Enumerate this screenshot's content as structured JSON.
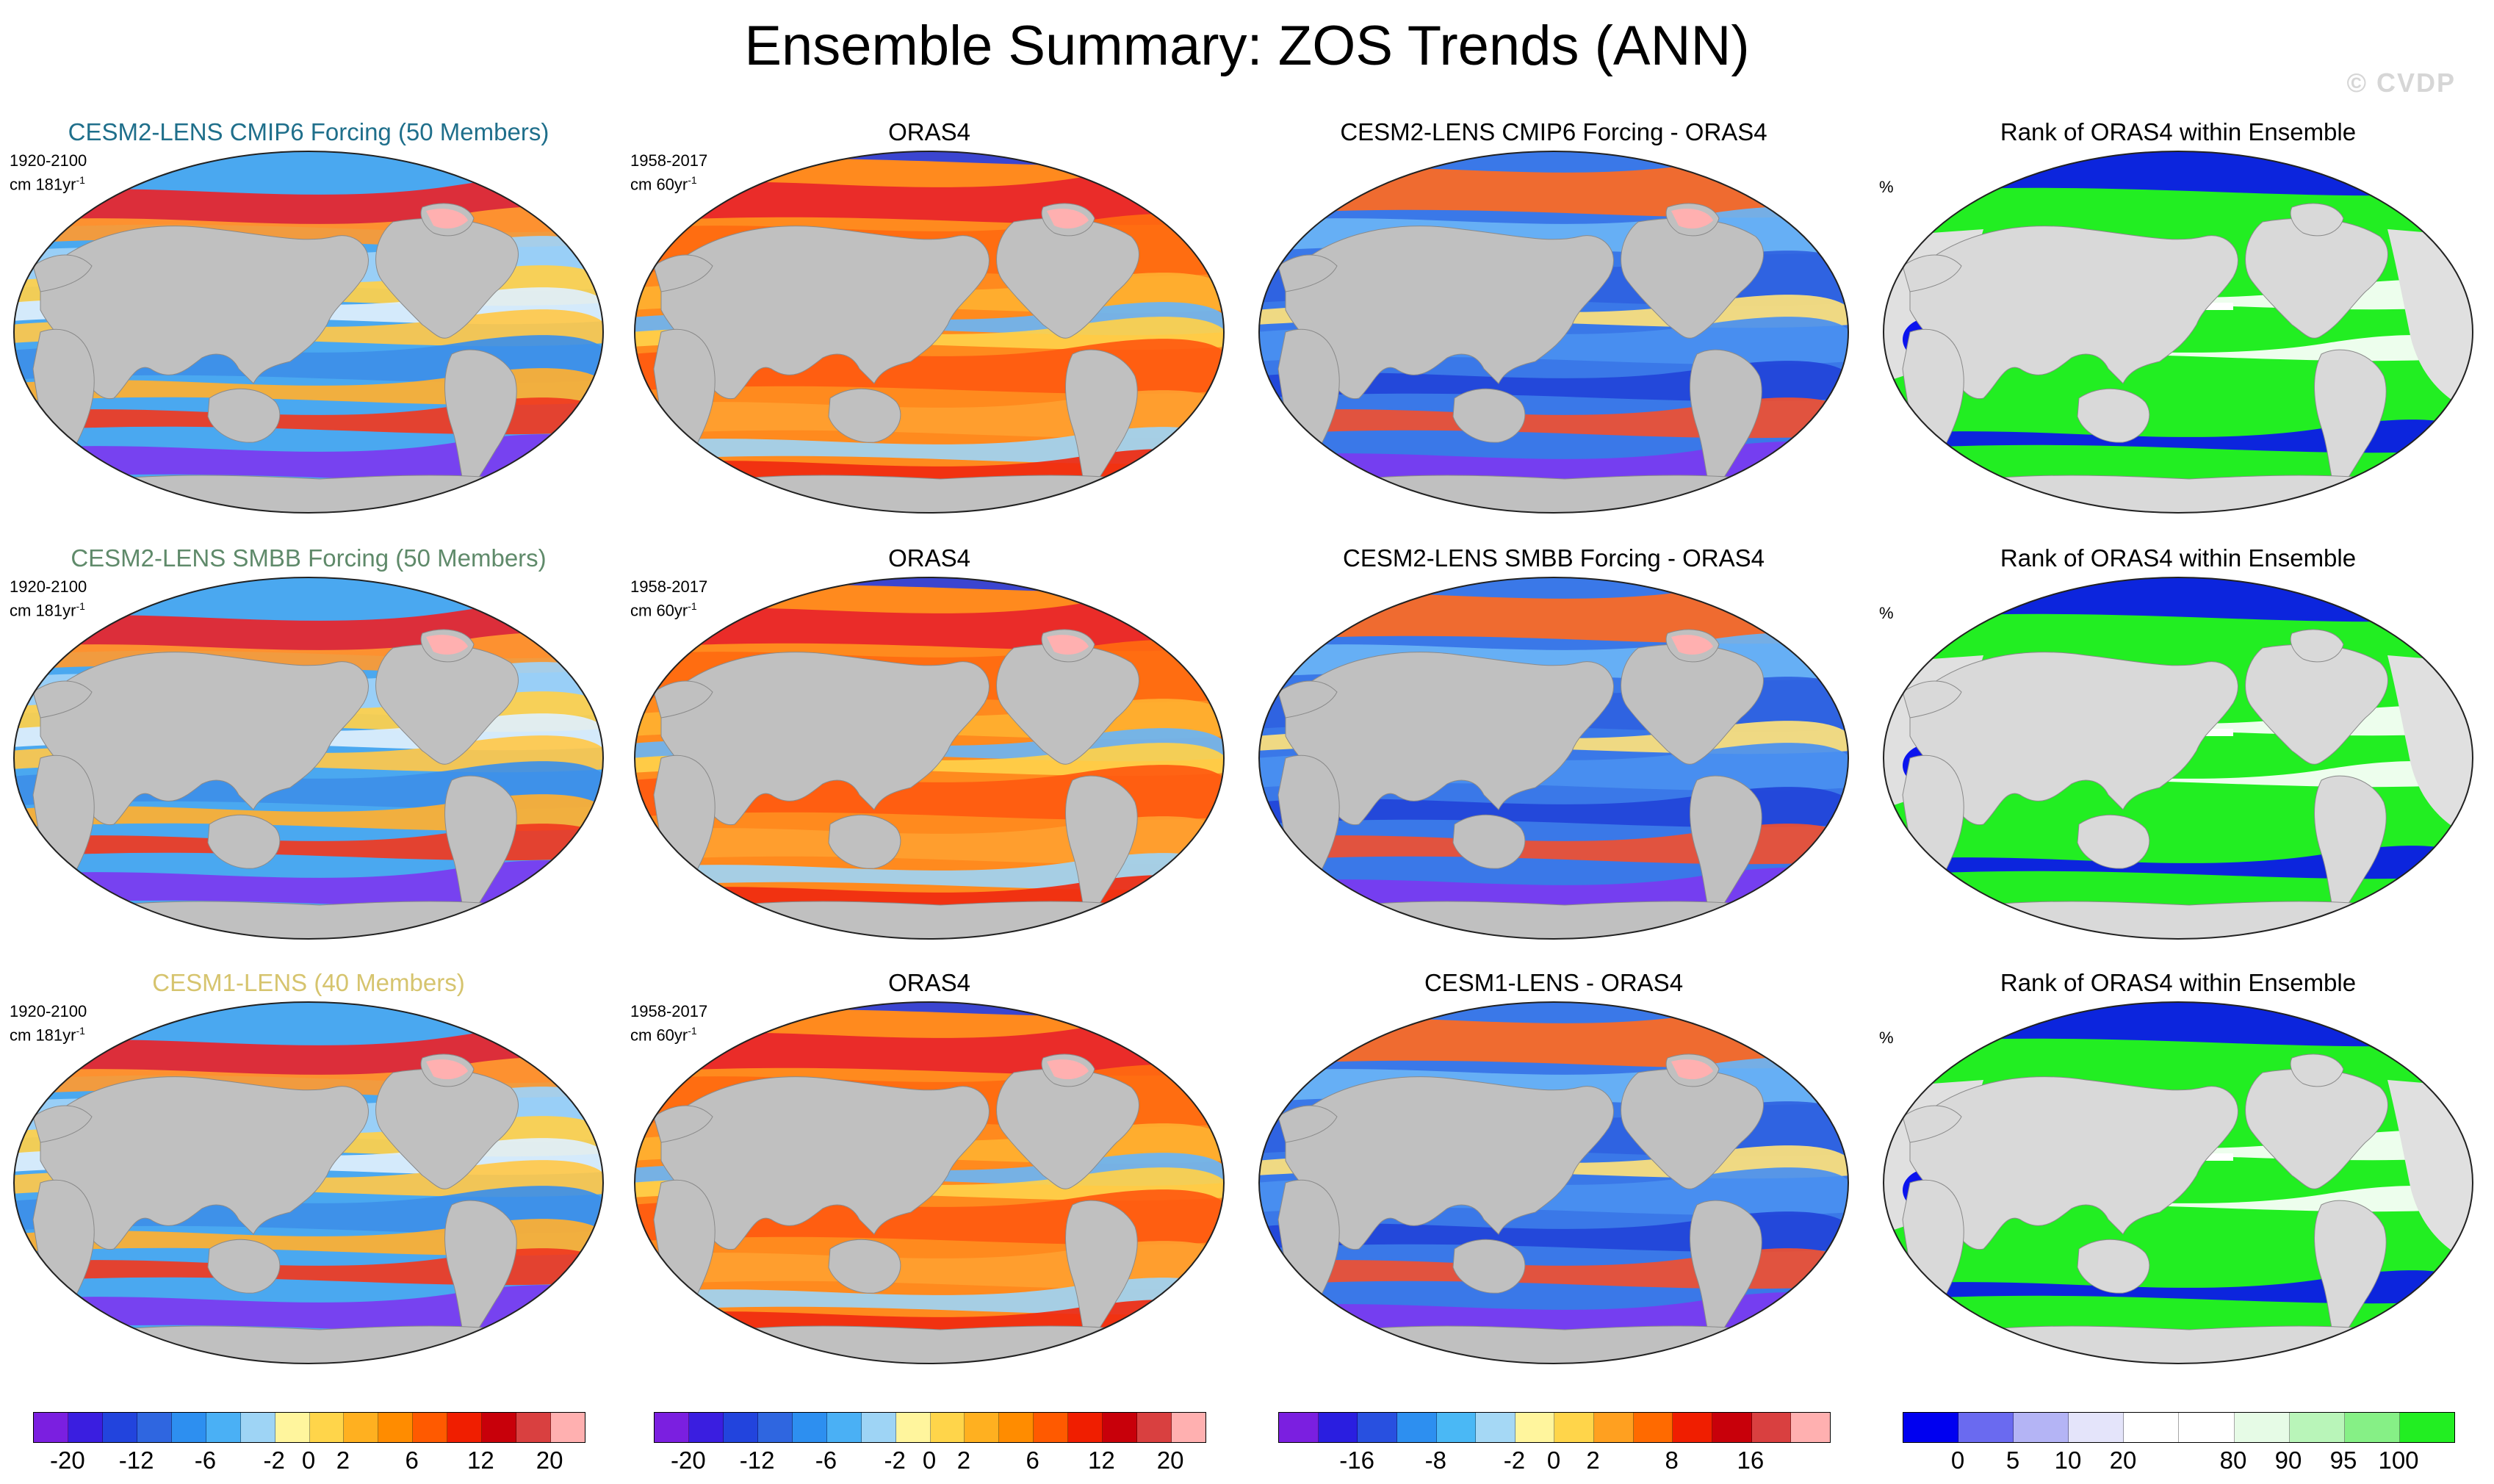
{
  "figure": {
    "title": "Ensemble Summary: ZOS Trends (ANN)",
    "watermark": "© CVDP"
  },
  "rows": [
    {
      "ensemble_title": "CESM2-LENS CMIP6 Forcing (50 Members)",
      "ensemble_title_color": "#1f6f8b",
      "ensemble_period": "1920-2100",
      "ensemble_units": "cm 181yr",
      "obs_title": "ORAS4",
      "obs_period": "1958-2017",
      "obs_units": "cm 60yr",
      "diff_title": "CESM2-LENS CMIP6 Forcing - ORAS4",
      "rank_title": "Rank of ORAS4 within Ensemble",
      "rank_units": "%"
    },
    {
      "ensemble_title": "CESM2-LENS SMBB Forcing (50 Members)",
      "ensemble_title_color": "#5f8a6a",
      "ensemble_period": "1920-2100",
      "ensemble_units": "cm 181yr",
      "obs_title": "ORAS4",
      "obs_period": "1958-2017",
      "obs_units": "cm 60yr",
      "diff_title": "CESM2-LENS SMBB Forcing - ORAS4",
      "rank_title": "Rank of ORAS4 within Ensemble",
      "rank_units": "%"
    },
    {
      "ensemble_title": "CESM1-LENS (40 Members)",
      "ensemble_title_color": "#d6c46e",
      "ensemble_period": "1920-2100",
      "ensemble_units": "cm 181yr",
      "obs_title": "ORAS4",
      "obs_period": "1958-2017",
      "obs_units": "cm 60yr",
      "diff_title": "CESM1-LENS - ORAS4",
      "rank_title": "Rank of ORAS4 within Ensemble",
      "rank_units": "%"
    }
  ],
  "units_exponent": "-1",
  "colorbars": [
    {
      "colors": [
        "#7b1fe0",
        "#3a1ee0",
        "#2244dd",
        "#2f66e0",
        "#2d8ff0",
        "#4ab0f5",
        "#9ed4f5",
        "#fff59d",
        "#ffd54a",
        "#ffb020",
        "#ff8c00",
        "#ff5a00",
        "#f01e00",
        "#c8000a",
        "#d94040",
        "#ffb0b0"
      ],
      "tick_labels": [
        "-20",
        "-12",
        "-6",
        "-2",
        "0",
        "2",
        "6",
        "12",
        "20"
      ],
      "tick_positions": [
        1,
        3,
        5,
        7,
        8,
        9,
        11,
        13,
        15
      ]
    },
    {
      "colors": [
        "#7b1fe0",
        "#3a1ee0",
        "#2244dd",
        "#2f66e0",
        "#2d8ff0",
        "#4ab0f5",
        "#9ed4f5",
        "#fff59d",
        "#ffd54a",
        "#ffb020",
        "#ff8c00",
        "#ff5a00",
        "#f01e00",
        "#c8000a",
        "#d94040",
        "#ffb0b0"
      ],
      "tick_labels": [
        "-20",
        "-12",
        "-6",
        "-2",
        "0",
        "2",
        "6",
        "12",
        "20"
      ],
      "tick_positions": [
        1,
        3,
        5,
        7,
        8,
        9,
        11,
        13,
        15
      ]
    },
    {
      "colors": [
        "#7b1fe0",
        "#2a1ee0",
        "#2850e0",
        "#2d8ff0",
        "#4ab8f5",
        "#a5d8f5",
        "#fff59d",
        "#ffd54a",
        "#ffa020",
        "#ff6a00",
        "#f01e00",
        "#c8000a",
        "#d94040",
        "#ffb0b0"
      ],
      "tick_labels": [
        "-16",
        "-8",
        "-2",
        "0",
        "2",
        "8",
        "16"
      ],
      "tick_positions": [
        2,
        4,
        6,
        7,
        8,
        10,
        12
      ]
    },
    {
      "colors": [
        "#0000f0",
        "#6a6af0",
        "#b4b4f5",
        "#e4e4fa",
        "#ffffff",
        "#ffffff",
        "#e6fbe6",
        "#b9f5b9",
        "#86f086",
        "#22ee22"
      ],
      "tick_labels": [
        "0",
        "5",
        "10",
        "20",
        "80",
        "90",
        "95",
        "100"
      ],
      "tick_positions": [
        1,
        2,
        3,
        4,
        6,
        7,
        8,
        9
      ]
    }
  ]
}
